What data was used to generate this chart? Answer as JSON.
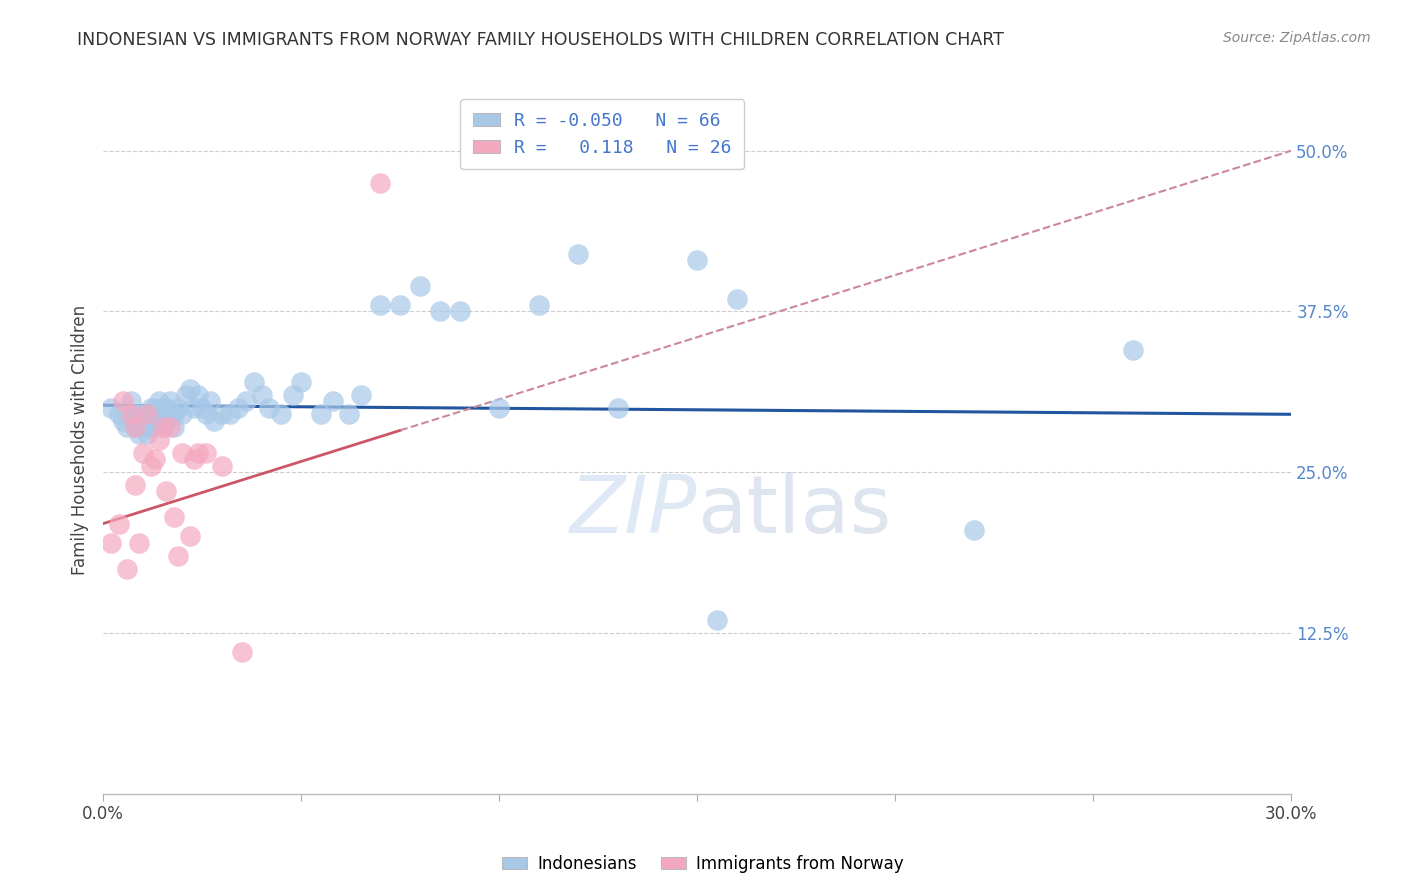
{
  "title": "INDONESIAN VS IMMIGRANTS FROM NORWAY FAMILY HOUSEHOLDS WITH CHILDREN CORRELATION CHART",
  "source": "Source: ZipAtlas.com",
  "ylabel": "Family Households with Children",
  "blue_R": -0.05,
  "blue_N": 66,
  "pink_R": 0.118,
  "pink_N": 26,
  "xlim": [
    0.0,
    0.3
  ],
  "ylim": [
    0.0,
    0.55
  ],
  "blue_color": "#a8c8e8",
  "pink_color": "#f4a8c0",
  "blue_line_color": "#2255a0",
  "pink_line_color": "#cc5566",
  "pink_dash_color": "#cc8899",
  "watermark_zip": "ZIP",
  "watermark_atlas": "atlas",
  "blue_x": [
    0.002,
    0.004,
    0.005,
    0.006,
    0.007,
    0.007,
    0.008,
    0.008,
    0.009,
    0.009,
    0.01,
    0.01,
    0.011,
    0.011,
    0.012,
    0.012,
    0.013,
    0.013,
    0.014,
    0.014,
    0.015,
    0.015,
    0.016,
    0.016,
    0.017,
    0.017,
    0.018,
    0.018,
    0.019,
    0.02,
    0.021,
    0.022,
    0.023,
    0.024,
    0.025,
    0.026,
    0.027,
    0.028,
    0.03,
    0.032,
    0.034,
    0.036,
    0.038,
    0.04,
    0.042,
    0.045,
    0.048,
    0.05,
    0.055,
    0.058,
    0.062,
    0.065,
    0.07,
    0.075,
    0.08,
    0.085,
    0.09,
    0.1,
    0.11,
    0.12,
    0.13,
    0.15,
    0.155,
    0.16,
    0.22,
    0.26
  ],
  "blue_y": [
    0.3,
    0.295,
    0.29,
    0.285,
    0.295,
    0.305,
    0.285,
    0.295,
    0.28,
    0.295,
    0.285,
    0.295,
    0.28,
    0.295,
    0.285,
    0.3,
    0.29,
    0.3,
    0.295,
    0.305,
    0.285,
    0.3,
    0.29,
    0.3,
    0.295,
    0.305,
    0.285,
    0.295,
    0.3,
    0.295,
    0.31,
    0.315,
    0.3,
    0.31,
    0.3,
    0.295,
    0.305,
    0.29,
    0.295,
    0.295,
    0.3,
    0.305,
    0.32,
    0.31,
    0.3,
    0.295,
    0.31,
    0.32,
    0.295,
    0.305,
    0.295,
    0.31,
    0.38,
    0.38,
    0.395,
    0.375,
    0.375,
    0.3,
    0.38,
    0.42,
    0.3,
    0.415,
    0.135,
    0.385,
    0.205,
    0.345
  ],
  "pink_x": [
    0.002,
    0.004,
    0.005,
    0.006,
    0.007,
    0.008,
    0.008,
    0.009,
    0.01,
    0.011,
    0.012,
    0.013,
    0.014,
    0.015,
    0.016,
    0.017,
    0.018,
    0.019,
    0.02,
    0.022,
    0.023,
    0.024,
    0.026,
    0.03,
    0.035,
    0.07
  ],
  "pink_y": [
    0.195,
    0.21,
    0.305,
    0.175,
    0.295,
    0.285,
    0.24,
    0.195,
    0.265,
    0.295,
    0.255,
    0.26,
    0.275,
    0.285,
    0.235,
    0.285,
    0.215,
    0.185,
    0.265,
    0.2,
    0.26,
    0.265,
    0.265,
    0.255,
    0.11,
    0.475
  ],
  "xtick_positions": [
    0.0,
    0.05,
    0.1,
    0.15,
    0.2,
    0.25,
    0.3
  ],
  "xtick_labels_show": {
    "0.0": "0.0%",
    "0.30": "30.0%"
  },
  "ytick_positions": [
    0.125,
    0.25,
    0.375,
    0.5
  ],
  "ytick_labels": [
    "12.5%",
    "25.0%",
    "37.5%",
    "50.0%"
  ]
}
